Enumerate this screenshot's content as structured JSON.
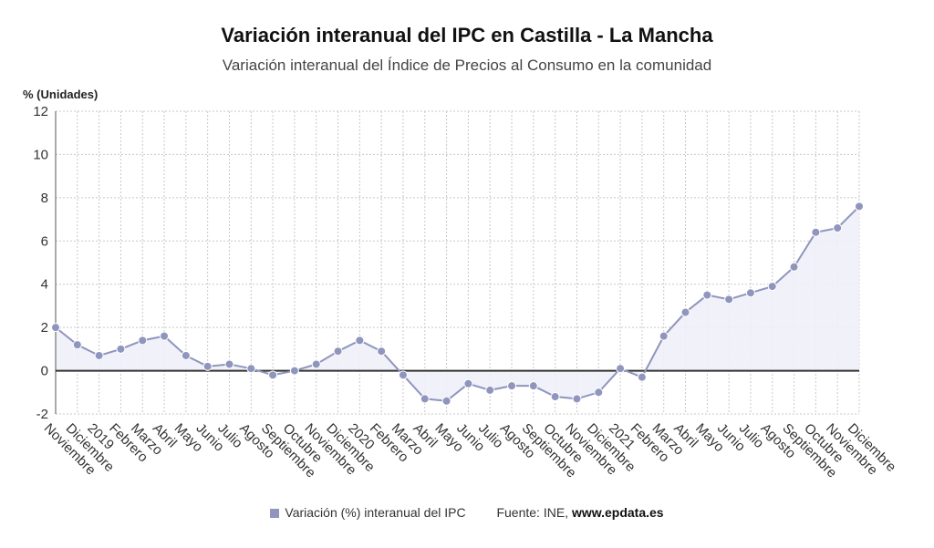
{
  "title": "Variación interanual del IPC en Castilla - La Mancha",
  "subtitle": "Variación interanual del Índice de Precios al Consumo en la comunidad",
  "source_label": "Fuente: INE, ",
  "source_site": "www.epdata.es",
  "colors": {
    "series": "#8f95bd",
    "area": "#eef0f8",
    "zero_line": "#333333",
    "grid": "#c8c8c8"
  },
  "chart_data": {
    "type": "area",
    "ylabel": "% (Unidades)",
    "ylim": [
      -2,
      12
    ],
    "yticks": [
      -2,
      0,
      2,
      4,
      6,
      8,
      10,
      12
    ],
    "grid": true,
    "legend_position": "bottom",
    "categories": [
      "Noviembre",
      "Diciembre",
      "2019",
      "Febrero",
      "Marzo",
      "Abril",
      "Mayo",
      "Junio",
      "Julio",
      "Agosto",
      "Septiembre",
      "Octubre",
      "Noviembre",
      "Diciembre",
      "2020",
      "Febrero",
      "Marzo",
      "Abril",
      "Mayo",
      "Junio",
      "Julio",
      "Agosto",
      "Septiembre",
      "Octubre",
      "Noviembre",
      "Diciembre",
      "2021",
      "Febrero",
      "Marzo",
      "Abril",
      "Mayo",
      "Junio",
      "Julio",
      "Agosto",
      "Septiembre",
      "Octubre",
      "Noviembre",
      "Diciembre"
    ],
    "series": [
      {
        "name": "Variación (%) interanual del IPC",
        "values": [
          2.0,
          1.2,
          0.7,
          1.0,
          1.4,
          1.6,
          0.7,
          0.2,
          0.3,
          0.1,
          -0.2,
          0.0,
          0.3,
          0.9,
          1.4,
          0.9,
          -0.2,
          -1.3,
          -1.4,
          -0.6,
          -0.9,
          -0.7,
          -0.7,
          -1.2,
          -1.3,
          -1.0,
          0.1,
          -0.3,
          1.6,
          2.7,
          3.5,
          3.3,
          3.6,
          3.9,
          4.8,
          6.4,
          6.6,
          7.6
        ]
      }
    ]
  }
}
